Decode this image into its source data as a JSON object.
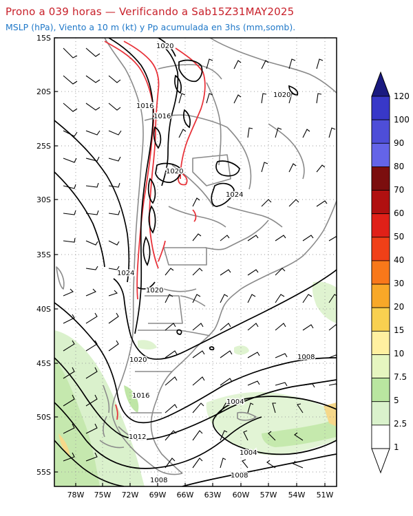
{
  "header": {
    "title": "Prono a 039 horas — Verificando a Sab15Z31MAY2025",
    "subtitle": "MSLP (hPa), Viento a 10 m (kt) y Pp acumulada en 3hs (mm,somb)."
  },
  "map": {
    "lat_labels": [
      "15S",
      "20S",
      "25S",
      "30S",
      "35S",
      "40S",
      "45S",
      "50S",
      "55S"
    ],
    "lon_labels": [
      "78W",
      "75W",
      "72W",
      "69W",
      "66W",
      "63W",
      "60W",
      "57W",
      "54W",
      "51W"
    ],
    "isobar_labels": [
      "1020",
      "1016",
      "1016",
      "1020",
      "1020",
      "1024",
      "1020",
      "1020",
      "1024",
      "1016",
      "1012",
      "1008",
      "1004",
      "1004",
      "1008",
      "1008"
    ],
    "colors": {
      "isobar": "#000000",
      "border": "#8a8a8a",
      "topo": "#e8333a",
      "grid": "#999999"
    }
  },
  "colorbar": {
    "labels": [
      "120",
      "100",
      "90",
      "80",
      "70",
      "60",
      "50",
      "40",
      "30",
      "20",
      "15",
      "10",
      "7.5",
      "5",
      "2.5",
      "1"
    ],
    "colors": [
      "#2222a0",
      "#3838c8",
      "#4e4ed8",
      "#6464e8",
      "#7b0e0e",
      "#b01010",
      "#e02018",
      "#f04018",
      "#f8781a",
      "#f8a828",
      "#f8d050",
      "#fff0a0",
      "#e6f6c0",
      "#b9e6a0",
      "#daf2cc",
      "#ffffff"
    ]
  }
}
